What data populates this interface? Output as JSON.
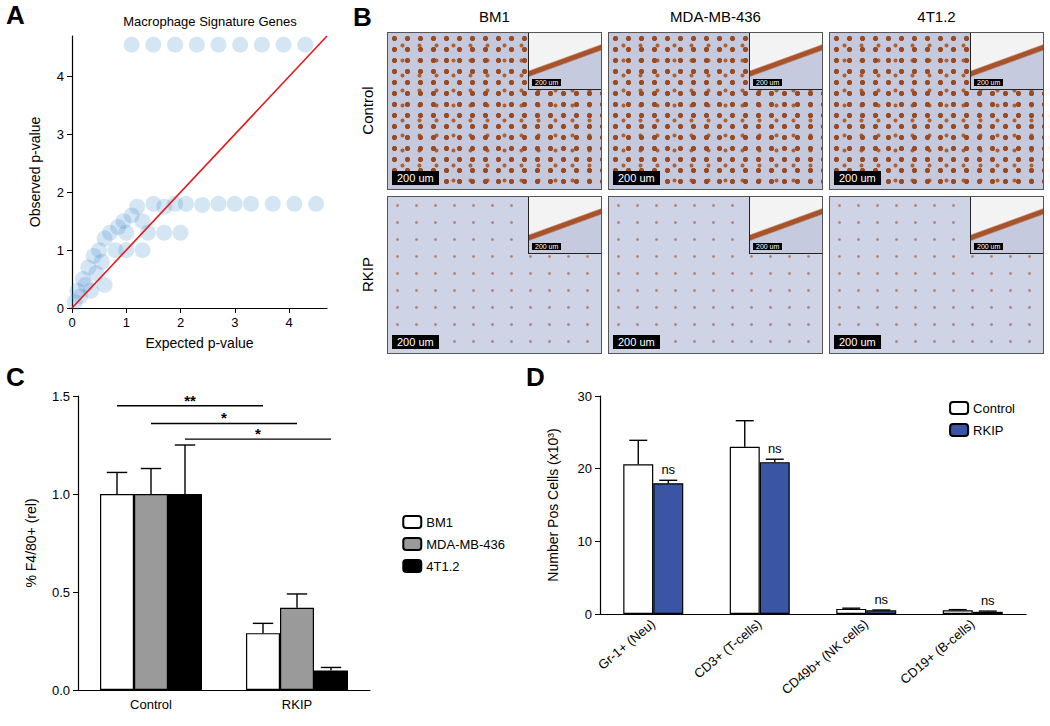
{
  "chart_data": [
    {
      "panel": "A",
      "type": "scatter",
      "title": "Macrophage Signature Genes",
      "xlabel": "Expected p-value",
      "ylabel": "Observed p-value",
      "xlim": [
        0,
        4.7
      ],
      "ylim": [
        0,
        4.7
      ],
      "xticks": [
        0,
        1,
        2,
        3,
        4
      ],
      "yticks": [
        0,
        1,
        2,
        3,
        4
      ],
      "grid": false,
      "series": [
        {
          "type": "scatter",
          "color": "#3a87c8",
          "x": [
            0.05,
            0.1,
            0.15,
            0.2,
            0.25,
            0.3,
            0.35,
            0.4,
            0.45,
            0.5,
            0.55,
            0.6,
            0.6,
            0.7,
            0.8,
            0.85,
            0.95,
            1.0,
            1.0,
            1.1,
            1.2,
            1.3,
            1.3,
            1.4,
            1.5,
            1.7,
            1.7,
            1.9,
            2.0,
            2.1,
            2.4,
            2.7,
            3.0,
            3.3,
            3.7,
            4.1,
            4.5,
            1.1,
            1.5,
            1.9,
            2.3,
            2.7,
            3.1,
            3.5,
            3.9,
            4.3
          ],
          "values": [
            0.1,
            0.3,
            0.2,
            0.5,
            0.4,
            0.7,
            0.3,
            0.9,
            0.6,
            1.0,
            0.8,
            1.2,
            0.4,
            1.3,
            1.0,
            1.4,
            1.5,
            1.3,
            1.0,
            1.6,
            1.75,
            1.5,
            1.0,
            1.3,
            1.8,
            1.75,
            1.3,
            1.8,
            1.3,
            1.8,
            1.78,
            1.8,
            1.8,
            1.8,
            1.8,
            1.8,
            1.8,
            4.55,
            4.55,
            4.55,
            4.55,
            4.55,
            4.55,
            4.55,
            4.55,
            4.55
          ]
        },
        {
          "type": "line",
          "color": "#e41a1c",
          "x": [
            0,
            4.7
          ],
          "values": [
            0,
            4.7
          ]
        }
      ]
    },
    {
      "panel": "C",
      "type": "bar",
      "ylabel": "% F4/80+ (rel)",
      "categories": [
        "Control",
        "RKIP"
      ],
      "ylim": [
        0,
        1.5
      ],
      "yticks": [
        {
          "value": 0,
          "label": "0.0"
        },
        {
          "value": 0.5,
          "label": "0.5"
        },
        {
          "value": 1,
          "label": "1.0"
        },
        {
          "value": 1.5,
          "label": "1.5"
        }
      ],
      "grid": false,
      "legend": "right",
      "series": [
        {
          "name": "BM1",
          "color": "#ffffff",
          "values": [
            1.0,
            0.29
          ],
          "errors": [
            0.11,
            0.05
          ]
        },
        {
          "name": "MDA-MB-436",
          "color": "#9a9a9a",
          "values": [
            1.0,
            0.42
          ],
          "errors": [
            0.13,
            0.07
          ]
        },
        {
          "name": "4T1.2",
          "color": "#000000",
          "values": [
            1.0,
            0.1
          ],
          "errors": [
            0.25,
            0.015
          ]
        }
      ],
      "annotations": [
        {
          "text": "**",
          "y": 1.45,
          "series": "BM1",
          "from": "Control",
          "to": "RKIP"
        },
        {
          "text": "*",
          "y": 1.36,
          "series": "MDA-MB-436",
          "from": "Control",
          "to": "RKIP"
        },
        {
          "text": "*",
          "y": 1.28,
          "series": "4T1.2",
          "from": "Control",
          "to": "RKIP"
        }
      ]
    },
    {
      "panel": "D",
      "type": "bar",
      "ylabel": "Number Pos Cells (x10³)",
      "categories": [
        "Gr-1+ (Neu)",
        "CD3+ (T-cells)",
        "CD49b+ (NK cells)",
        "CD19+ (B-cells)"
      ],
      "ylim": [
        0,
        30
      ],
      "yticks": [
        0,
        10,
        20,
        30
      ],
      "grid": false,
      "legend": "upper right",
      "series": [
        {
          "name": "Control",
          "color": "#ffffff",
          "values": [
            20.6,
            23.0,
            0.7,
            0.5
          ],
          "errors": [
            3.3,
            3.6,
            0.1,
            0.1
          ]
        },
        {
          "name": "RKIP",
          "color": "#3a55a4",
          "values": [
            18.0,
            20.9,
            0.5,
            0.3
          ],
          "errors": [
            0.4,
            0.4,
            0.05,
            0.1
          ],
          "annotations": [
            "ns",
            "ns",
            "ns",
            "ns"
          ]
        }
      ]
    }
  ],
  "image_panel": {
    "panel": "B",
    "columns": [
      "BM1",
      "MDA-MB-436",
      "4T1.2"
    ],
    "rows": [
      "Control",
      "RKIP"
    ],
    "scale_bar": "200 um"
  }
}
